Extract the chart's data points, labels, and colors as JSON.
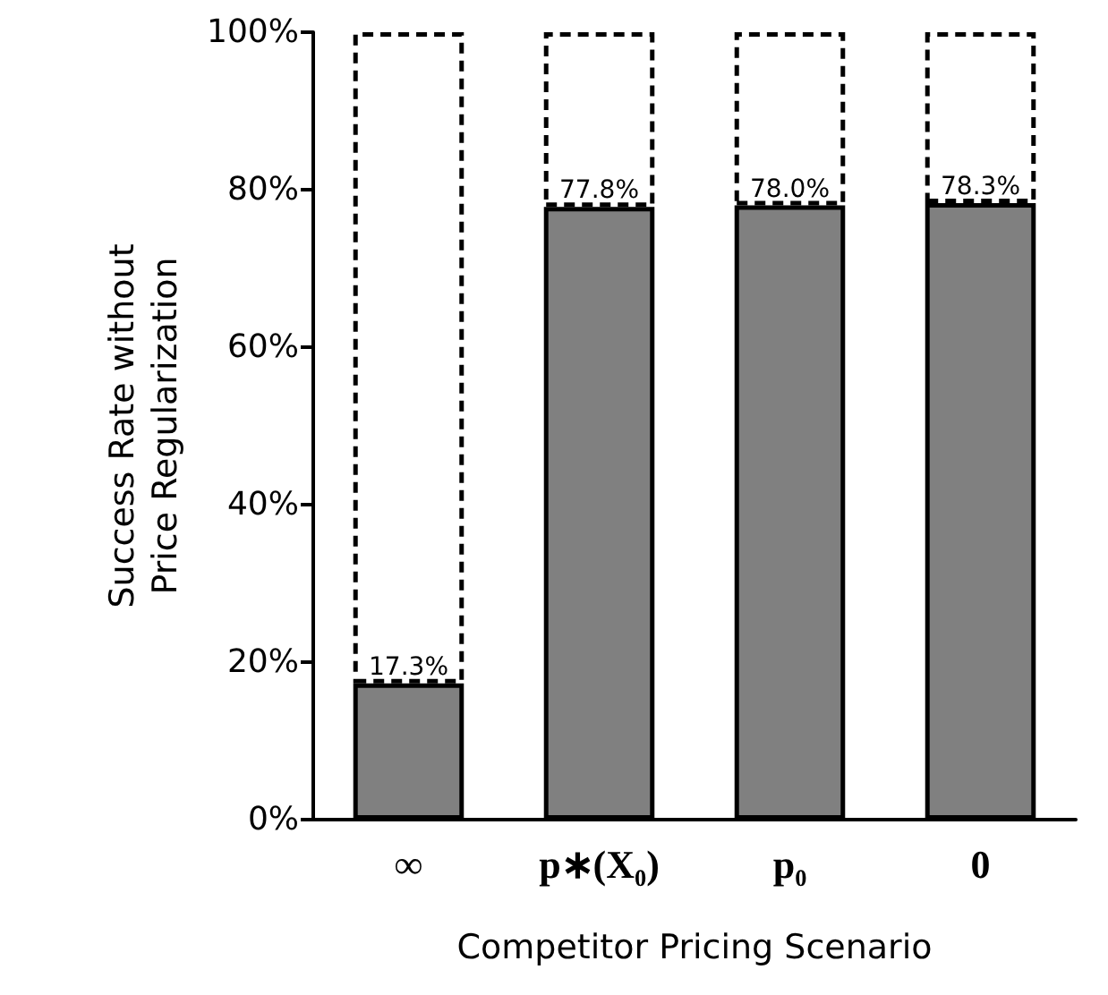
{
  "chart_data": {
    "type": "bar",
    "stacked": true,
    "xlabel": "Competitor Pricing Scenario",
    "ylabel": "Success Rate without\nPrice Regularization",
    "categories": [
      "∞",
      "p∗(X₀)",
      "p₀",
      "0"
    ],
    "series": [
      {
        "color": "#808080",
        "values": [
          17.3,
          77.8,
          78.0,
          78.3
        ],
        "value_labels": [
          "17.3%",
          "77.8%",
          "78.0%",
          "78.3%"
        ]
      },
      {
        "color": "#ffffff",
        "values": [
          82.7,
          22.2,
          22.0,
          21.7
        ],
        "line_style": "dashed"
      }
    ],
    "ylim": [
      0,
      100
    ],
    "yticks": [
      {
        "value": 0,
        "label": "0%"
      },
      {
        "value": 20,
        "label": "20%"
      },
      {
        "value": 40,
        "label": "40%"
      },
      {
        "value": 60,
        "label": "60%"
      },
      {
        "value": 80,
        "label": "80%"
      },
      {
        "value": 100,
        "label": "100%"
      }
    ],
    "grid": false
  }
}
